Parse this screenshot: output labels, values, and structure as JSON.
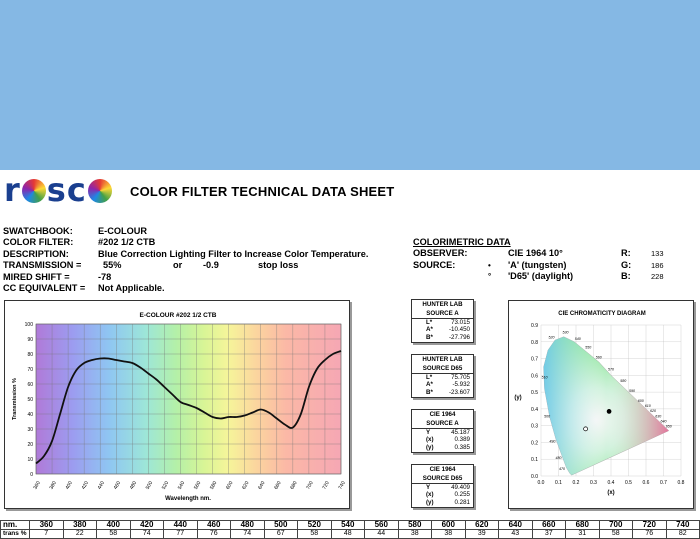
{
  "swatch": {
    "color": "#85b8e4"
  },
  "header": {
    "logo_text_1": "r",
    "logo_text_2": "sc",
    "logo_text_3": "",
    "title": "COLOR FILTER TECHNICAL DATA SHEET"
  },
  "info": {
    "swatchbook_label": "SWATCHBOOK:",
    "swatchbook_value": "E-COLOUR",
    "color_filter_label": "COLOR FILTER:",
    "color_filter_value": "#202 1/2 CTB",
    "description_label": "DESCRIPTION:",
    "description_value": "Blue Correction Lighting Filter to Increase Color Temperature.",
    "transmission_label": "TRANSMISSION =",
    "transmission_value": "55%",
    "or_text": "or",
    "stop_value": "-0.9",
    "stop_loss_text": "stop loss",
    "mired_label": "MIRED SHIFT =",
    "mired_value": "-78",
    "cc_label": "CC EQUIVALENT =",
    "cc_value": "Not Applicable."
  },
  "colorimetric": {
    "heading": "COLORIMETRIC DATA",
    "observer_label": "OBSERVER:",
    "observer_value": "CIE 1964 10°",
    "source_label": "SOURCE:",
    "source_a_symbol": "•",
    "source_a": "'A' (tungsten)",
    "source_d65_symbol": "°",
    "source_d65": "'D65' (daylight)",
    "r_label": "R:",
    "r_value": "133",
    "g_label": "G:",
    "g_value": "186",
    "b_label": "B:",
    "b_value": "228"
  },
  "hunter_a": {
    "title1": "HUNTER LAB",
    "title2": "SOURCE A",
    "l_label": "L*",
    "l": "73.015",
    "a_label": "A*",
    "a": "-10.450",
    "b_label": "B*",
    "b": "-27.796"
  },
  "hunter_d65": {
    "title1": "HUNTER LAB",
    "title2": "SOURCE D65",
    "l_label": "L*",
    "l": "75.705",
    "a_label": "A*",
    "a": "-5.932",
    "b_label": "B*",
    "b": "-23.607"
  },
  "cie_a": {
    "title1": "CIE 1964",
    "title2": "SOURCE A",
    "y_label": "Y",
    "Y": "45.187",
    "x_label": "(x)",
    "x": "0.389",
    "yy_label": "(y)",
    "y": "0.385"
  },
  "cie_d65": {
    "title1": "CIE 1964",
    "title2": "SOURCE D65",
    "y_label": "Y",
    "Y": "49.409",
    "x_label": "(x)",
    "x": "0.255",
    "yy_label": "(y)",
    "y": "0.281"
  },
  "table": {
    "nm_label": "nm.",
    "trans_label": "trans %",
    "nm": [
      "360",
      "380",
      "400",
      "420",
      "440",
      "460",
      "480",
      "500",
      "520",
      "540",
      "560",
      "580",
      "600",
      "620",
      "640",
      "660",
      "680",
      "700",
      "720",
      "740"
    ],
    "trans": [
      "7",
      "22",
      "58",
      "74",
      "77",
      "76",
      "74",
      "67",
      "58",
      "48",
      "44",
      "38",
      "38",
      "39",
      "43",
      "37",
      "31",
      "58",
      "76",
      "82"
    ]
  },
  "chart_data": [
    {
      "type": "line",
      "title": "E-COLOUR #202 1/2 CTB",
      "xlabel": "Wavelength nm.",
      "ylabel": "Transmission %",
      "xlim": [
        360,
        740
      ],
      "ylim": [
        0,
        100
      ],
      "x_ticks": [
        360,
        380,
        400,
        420,
        440,
        460,
        480,
        500,
        520,
        540,
        560,
        580,
        600,
        620,
        640,
        660,
        680,
        700,
        720,
        740
      ],
      "y_ticks": [
        0,
        10,
        20,
        30,
        40,
        50,
        60,
        70,
        80,
        90,
        100
      ],
      "grid": true,
      "series": [
        {
          "x": [
            360,
            370,
            380,
            390,
            400,
            410,
            420,
            430,
            440,
            450,
            460,
            470,
            480,
            490,
            500,
            510,
            520,
            530,
            540,
            550,
            560,
            570,
            580,
            590,
            600,
            610,
            620,
            630,
            640,
            650,
            660,
            670,
            680,
            690,
            700,
            710,
            720,
            730,
            740
          ],
          "y": [
            7,
            12,
            22,
            40,
            58,
            69,
            74,
            76,
            77,
            77,
            76,
            75,
            74,
            71,
            67,
            63,
            58,
            53,
            48,
            46,
            44,
            41,
            38,
            37,
            38,
            38,
            39,
            41,
            43,
            41,
            37,
            33,
            31,
            40,
            58,
            70,
            76,
            80,
            82
          ]
        }
      ]
    },
    {
      "type": "scatter",
      "title": "CIE CHROMATICITY DIAGRAM",
      "xlabel": "(x)",
      "ylabel": "(y)",
      "xlim": [
        0,
        0.8
      ],
      "ylim": [
        0,
        0.9
      ],
      "x_ticks": [
        0.0,
        0.1,
        0.2,
        0.3,
        0.4,
        0.5,
        0.6,
        0.7,
        0.8
      ],
      "y_ticks": [
        0.0,
        0.1,
        0.2,
        0.3,
        0.4,
        0.5,
        0.6,
        0.7,
        0.8,
        0.9
      ],
      "series": [
        {
          "name": "'A' (tungsten)",
          "marker": "filled",
          "x": [
            0.389
          ],
          "y": [
            0.385
          ]
        },
        {
          "name": "'D65' (daylight)",
          "marker": "open",
          "x": [
            0.255
          ],
          "y": [
            0.281
          ]
        }
      ],
      "locus_labels": [
        "470",
        "480",
        "490",
        "500",
        "510",
        "520",
        "530",
        "540",
        "550",
        "560",
        "570",
        "580",
        "590",
        "600",
        "610",
        "620",
        "630",
        "640",
        "650"
      ]
    }
  ]
}
